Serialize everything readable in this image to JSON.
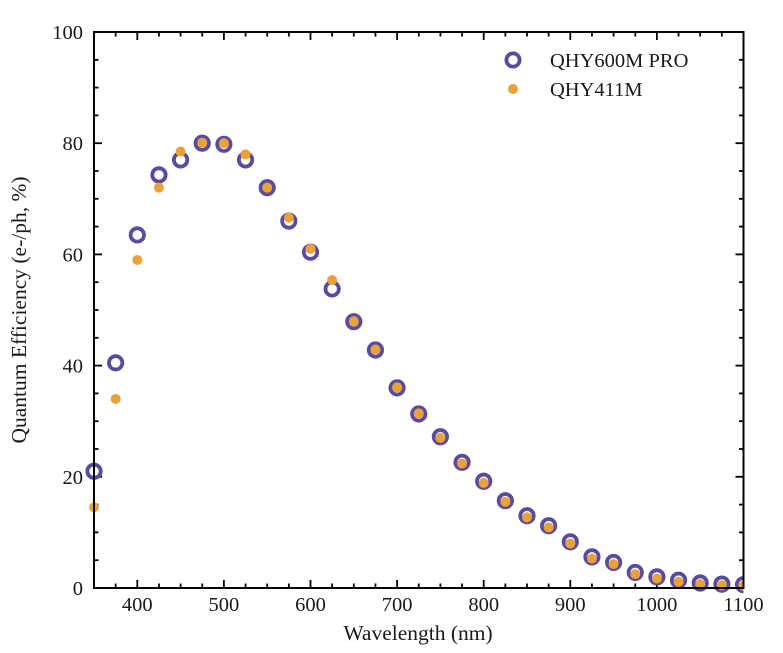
{
  "figure": {
    "background": "#ffffff",
    "axis_color": "#000000",
    "text_color": "#1a1a1a"
  },
  "chart_data": {
    "type": "scatter",
    "title": "",
    "xlabel": "Wavelength (nm)",
    "ylabel": "Quantum Efficiency (e-/ph, %)",
    "xlim": [
      350,
      1100
    ],
    "ylim": [
      0,
      100
    ],
    "x_major_ticks": [
      400,
      500,
      600,
      700,
      800,
      900,
      1000,
      1100
    ],
    "x_tick_labels": [
      "400",
      "500",
      "600",
      "700",
      "800",
      "900",
      "1000",
      "1100"
    ],
    "x_minor_step": 25,
    "y_major_ticks": [
      0,
      20,
      40,
      60,
      80,
      100
    ],
    "y_tick_labels": [
      "0",
      "20",
      "40",
      "60",
      "80",
      "100"
    ],
    "y_minor_step": 5,
    "grid": false,
    "legend_position": "upper right",
    "x": [
      350,
      375,
      400,
      425,
      450,
      475,
      500,
      525,
      550,
      575,
      600,
      625,
      650,
      675,
      700,
      725,
      750,
      775,
      800,
      825,
      850,
      875,
      900,
      925,
      950,
      975,
      1000,
      1025,
      1050,
      1075,
      1100
    ],
    "series": [
      {
        "name": "QHY600M PRO",
        "marker": "open-circle",
        "color": "#5b4b9f",
        "values": [
          21.0,
          40.5,
          63.5,
          74.3,
          77.0,
          80.0,
          79.8,
          77.0,
          72.0,
          66.0,
          60.4,
          53.8,
          47.9,
          42.8,
          36.0,
          31.3,
          27.2,
          22.6,
          19.2,
          15.7,
          13.0,
          11.2,
          8.3,
          5.6,
          4.6,
          2.8,
          2.0,
          1.4,
          0.9,
          0.7,
          0.6
        ]
      },
      {
        "name": "QHY411M",
        "marker": "filled-dot",
        "color": "#e9a23a",
        "values": [
          14.5,
          34.0,
          59.0,
          72.0,
          78.5,
          80.1,
          80.0,
          78.0,
          72.0,
          66.6,
          61.0,
          55.4,
          48.0,
          42.9,
          36.1,
          31.4,
          27.0,
          22.4,
          18.9,
          15.5,
          12.7,
          10.9,
          8.0,
          5.3,
          4.3,
          2.5,
          1.7,
          1.1,
          0.7,
          0.5,
          0.4
        ]
      }
    ]
  }
}
